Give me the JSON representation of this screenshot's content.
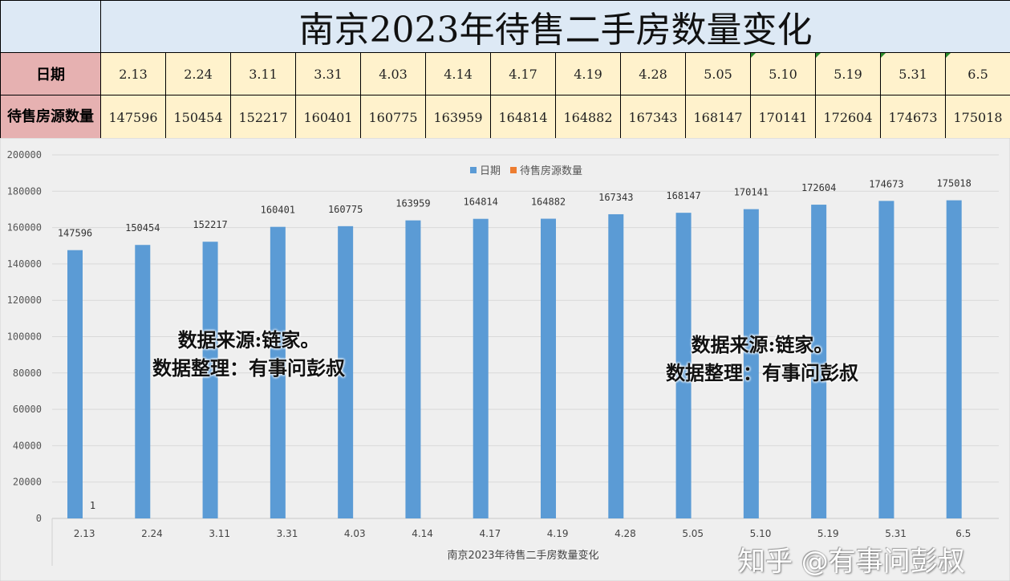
{
  "table": {
    "title": "南京2023年待售二手房数量变化",
    "row1_header": "日期",
    "row2_header": "待售房源数量",
    "dates": [
      "2.13",
      "2.24",
      "3.11",
      "3.31",
      "4.03",
      "4.14",
      "4.17",
      "4.19",
      "4.28",
      "5.05",
      "5.10",
      "5.19",
      "5.31",
      "6.5"
    ],
    "counts": [
      "147596",
      "150454",
      "152217",
      "160401",
      "160775",
      "163959",
      "164814",
      "164882",
      "167343",
      "168147",
      "170141",
      "172604",
      "174673",
      "175018"
    ]
  },
  "chart_data": {
    "type": "bar",
    "categories": [
      "2.13",
      "2.24",
      "3.11",
      "3.31",
      "4.03",
      "4.14",
      "4.17",
      "4.19",
      "4.28",
      "5.05",
      "5.10",
      "5.19",
      "5.31",
      "6.5"
    ],
    "series": [
      {
        "name": "日期",
        "color": "#5b9bd5",
        "values": [
          147596,
          150454,
          152217,
          160401,
          160775,
          163959,
          164814,
          164882,
          167343,
          168147,
          170141,
          172604,
          174673,
          175018
        ]
      },
      {
        "name": "待售房源数量",
        "color": "#ed7d31",
        "values": [
          1,
          null,
          null,
          null,
          null,
          null,
          null,
          null,
          null,
          null,
          null,
          null,
          null,
          null
        ]
      }
    ],
    "xlabel": "南京2023年待售二手房数量变化",
    "ylim": [
      0,
      200000
    ],
    "yticks": [
      "0",
      "20000",
      "40000",
      "60000",
      "80000",
      "100000",
      "120000",
      "140000",
      "160000",
      "180000",
      "200000"
    ],
    "grid": true,
    "legend": "top"
  },
  "annotations": [
    {
      "line1": "数据来源:链家。",
      "line2": "数据整理：有事问彭叔"
    },
    {
      "line1": "数据来源:链家。",
      "line2": "数据整理：有事问彭叔"
    }
  ],
  "watermark": "知乎 @有事问彭叔"
}
